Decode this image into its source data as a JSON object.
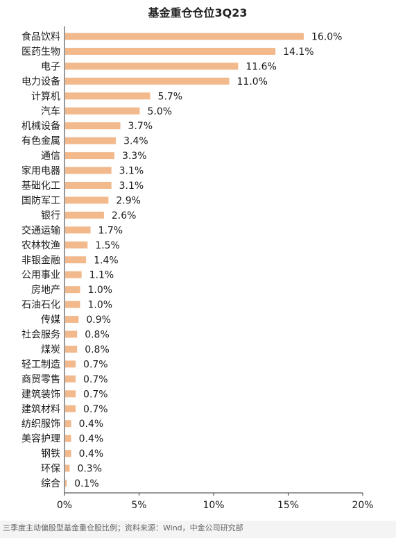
{
  "chart_data": {
    "type": "bar",
    "orientation": "horizontal",
    "title": "基金重仓仓位3Q23",
    "categories": [
      "食品饮料",
      "医药生物",
      "电子",
      "电力设备",
      "计算机",
      "汽车",
      "机械设备",
      "有色金属",
      "通信",
      "家用电器",
      "基础化工",
      "国防军工",
      "银行",
      "交通运输",
      "农林牧渔",
      "非银金融",
      "公用事业",
      "房地产",
      "石油石化",
      "传媒",
      "社会服务",
      "煤炭",
      "轻工制造",
      "商贸零售",
      "建筑装饰",
      "建筑材料",
      "纺织服饰",
      "美容护理",
      "钢铁",
      "环保",
      "综合"
    ],
    "values": [
      16.0,
      14.1,
      11.6,
      11.0,
      5.7,
      5.0,
      3.7,
      3.4,
      3.3,
      3.1,
      3.1,
      2.9,
      2.6,
      1.7,
      1.5,
      1.4,
      1.1,
      1.0,
      1.0,
      0.9,
      0.8,
      0.8,
      0.7,
      0.7,
      0.7,
      0.7,
      0.4,
      0.4,
      0.4,
      0.3,
      0.1
    ],
    "value_labels": [
      "16.0%",
      "14.1%",
      "11.6%",
      "11.0%",
      "5.7%",
      "5.0%",
      "3.7%",
      "3.4%",
      "3.3%",
      "3.1%",
      "3.1%",
      "2.9%",
      "2.6%",
      "1.7%",
      "1.5%",
      "1.4%",
      "1.1%",
      "1.0%",
      "1.0%",
      "0.9%",
      "0.8%",
      "0.8%",
      "0.7%",
      "0.7%",
      "0.7%",
      "0.7%",
      "0.4%",
      "0.4%",
      "0.4%",
      "0.3%",
      "0.1%"
    ],
    "xlim": [
      0,
      20
    ],
    "xticks": [
      0,
      5,
      10,
      15,
      20
    ],
    "xtick_labels": [
      "0%",
      "5%",
      "10%",
      "15%",
      "20%"
    ],
    "xlabel": "",
    "ylabel": "",
    "grid": false,
    "legend": "none",
    "bar_color": "#f2b98d"
  },
  "footer": {
    "note": "三季度主动偏股型基金重仓股比例；资料来源：Wind，中金公司研究部"
  }
}
